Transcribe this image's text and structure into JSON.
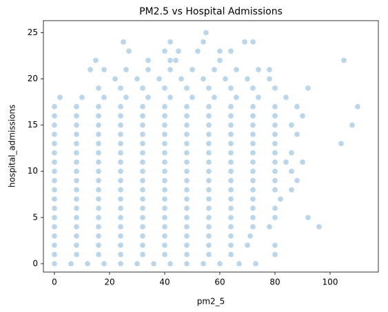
{
  "chart_data": {
    "type": "scatter",
    "title": "PM2.5 vs Hospital Admissions",
    "x_label": "pm2_5",
    "y_label": "hospital_admissions",
    "xlim": [
      -4,
      117.5
    ],
    "ylim": [
      -0.9,
      26.3
    ],
    "xticks": [
      0,
      20,
      40,
      60,
      80,
      100
    ],
    "yticks": [
      0,
      5,
      10,
      15,
      20,
      25
    ],
    "grid": false,
    "series": [
      {
        "color": "#1f77b4",
        "x": [
          0,
          6,
          12,
          18,
          24,
          30,
          36,
          42,
          48,
          54,
          60,
          67,
          73,
          0,
          8,
          16,
          24,
          32,
          40,
          48,
          56,
          64,
          80,
          0,
          8,
          16,
          24,
          32,
          40,
          48,
          56,
          64,
          70,
          80,
          0,
          8,
          16,
          24,
          32,
          40,
          48,
          56,
          64,
          71,
          0,
          8,
          16,
          24,
          32,
          40,
          48,
          56,
          64,
          72,
          78,
          96,
          0,
          8,
          16,
          24,
          32,
          40,
          48,
          56,
          64,
          72,
          80,
          92,
          0,
          8,
          16,
          24,
          32,
          40,
          48,
          56,
          64,
          72,
          80,
          0,
          8,
          16,
          24,
          32,
          40,
          48,
          56,
          64,
          72,
          82,
          0,
          8,
          16,
          24,
          32,
          40,
          48,
          56,
          64,
          72,
          80,
          86,
          0,
          8,
          16,
          24,
          32,
          40,
          48,
          56,
          64,
          72,
          80,
          88,
          0,
          8,
          16,
          24,
          32,
          40,
          48,
          56,
          64,
          72,
          80,
          86,
          0,
          8,
          16,
          24,
          32,
          40,
          48,
          56,
          64,
          72,
          80,
          84,
          90,
          0,
          8,
          16,
          24,
          32,
          40,
          48,
          56,
          64,
          72,
          80,
          86,
          0,
          8,
          16,
          24,
          32,
          40,
          48,
          56,
          64,
          72,
          80,
          104,
          0,
          8,
          16,
          24,
          32,
          40,
          48,
          56,
          64,
          72,
          80,
          88,
          0,
          8,
          16,
          24,
          32,
          40,
          48,
          56,
          64,
          72,
          80,
          86,
          108,
          0,
          8,
          16,
          24,
          32,
          40,
          48,
          56,
          64,
          72,
          80,
          90,
          0,
          8,
          16,
          24,
          32,
          40,
          48,
          56,
          64,
          72,
          80,
          88,
          110,
          2,
          10,
          18,
          26,
          34,
          42,
          50,
          58,
          66,
          74,
          84,
          16,
          24,
          32,
          40,
          48,
          56,
          64,
          72,
          80,
          92,
          22,
          30,
          38,
          46,
          54,
          62,
          70,
          78,
          13,
          18,
          26,
          34,
          42,
          50,
          58,
          66,
          74,
          78,
          15,
          34,
          42,
          44,
          60,
          105,
          27,
          40,
          45,
          52,
          60,
          64,
          25,
          42,
          54,
          69,
          72,
          55
        ],
        "values": [
          0,
          0,
          0,
          0,
          0,
          0,
          0,
          0,
          0,
          0,
          0,
          0,
          0,
          1,
          1,
          1,
          1,
          1,
          1,
          1,
          1,
          1,
          1,
          2,
          2,
          2,
          2,
          2,
          2,
          2,
          2,
          2,
          2,
          2,
          3,
          3,
          3,
          3,
          3,
          3,
          3,
          3,
          3,
          3,
          4,
          4,
          4,
          4,
          4,
          4,
          4,
          4,
          4,
          4,
          4,
          4,
          5,
          5,
          5,
          5,
          5,
          5,
          5,
          5,
          5,
          5,
          5,
          5,
          6,
          6,
          6,
          6,
          6,
          6,
          6,
          6,
          6,
          6,
          6,
          7,
          7,
          7,
          7,
          7,
          7,
          7,
          7,
          7,
          7,
          7,
          8,
          8,
          8,
          8,
          8,
          8,
          8,
          8,
          8,
          8,
          8,
          8,
          9,
          9,
          9,
          9,
          9,
          9,
          9,
          9,
          9,
          9,
          9,
          9,
          10,
          10,
          10,
          10,
          10,
          10,
          10,
          10,
          10,
          10,
          10,
          10,
          11,
          11,
          11,
          11,
          11,
          11,
          11,
          11,
          11,
          11,
          11,
          11,
          11,
          12,
          12,
          12,
          12,
          12,
          12,
          12,
          12,
          12,
          12,
          12,
          12,
          13,
          13,
          13,
          13,
          13,
          13,
          13,
          13,
          13,
          13,
          13,
          13,
          14,
          14,
          14,
          14,
          14,
          14,
          14,
          14,
          14,
          14,
          14,
          14,
          15,
          15,
          15,
          15,
          15,
          15,
          15,
          15,
          15,
          15,
          15,
          15,
          15,
          16,
          16,
          16,
          16,
          16,
          16,
          16,
          16,
          16,
          16,
          16,
          16,
          17,
          17,
          17,
          17,
          17,
          17,
          17,
          17,
          17,
          17,
          17,
          17,
          17,
          18,
          18,
          18,
          18,
          18,
          18,
          18,
          18,
          18,
          18,
          18,
          19,
          19,
          19,
          19,
          19,
          19,
          19,
          19,
          19,
          19,
          20,
          20,
          20,
          20,
          20,
          20,
          20,
          20,
          21,
          21,
          21,
          21,
          21,
          21,
          21,
          21,
          21,
          21,
          22,
          22,
          22,
          22,
          22,
          22,
          23,
          23,
          23,
          23,
          23,
          23,
          24,
          24,
          24,
          24,
          24,
          25
        ]
      }
    ]
  }
}
